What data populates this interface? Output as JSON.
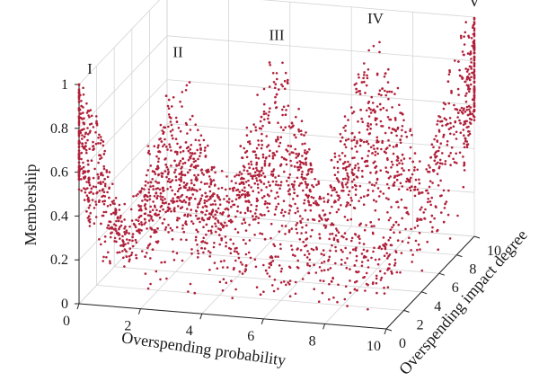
{
  "chart_data": {
    "type": "scatter3d",
    "xlabel": "Overspending probability",
    "ylabel": "Overspending impact degree",
    "zlabel": "Membership",
    "xlim": [
      0,
      10
    ],
    "ylim": [
      0,
      10
    ],
    "zlim": [
      0,
      1
    ],
    "x_ticks": [
      "0",
      "2",
      "4",
      "6",
      "8",
      "10"
    ],
    "y_ticks": [
      "0",
      "2",
      "4",
      "6",
      "8",
      "10"
    ],
    "z_ticks": [
      "0",
      "0.2",
      "0.4",
      "0.6",
      "0.8",
      "1"
    ],
    "grid": true,
    "marker_color": "#b0203a",
    "peaks": [
      {
        "label": "I",
        "x": 0,
        "y": 0,
        "membership": 1.0
      },
      {
        "label": "II",
        "x": 2.5,
        "y": 2.5,
        "membership": 1.0
      },
      {
        "label": "III",
        "x": 5,
        "y": 5,
        "membership": 1.0
      },
      {
        "label": "IV",
        "x": 7.5,
        "y": 7.5,
        "membership": 1.0
      },
      {
        "label": "V",
        "x": 10,
        "y": 10,
        "membership": 1.0
      }
    ]
  }
}
